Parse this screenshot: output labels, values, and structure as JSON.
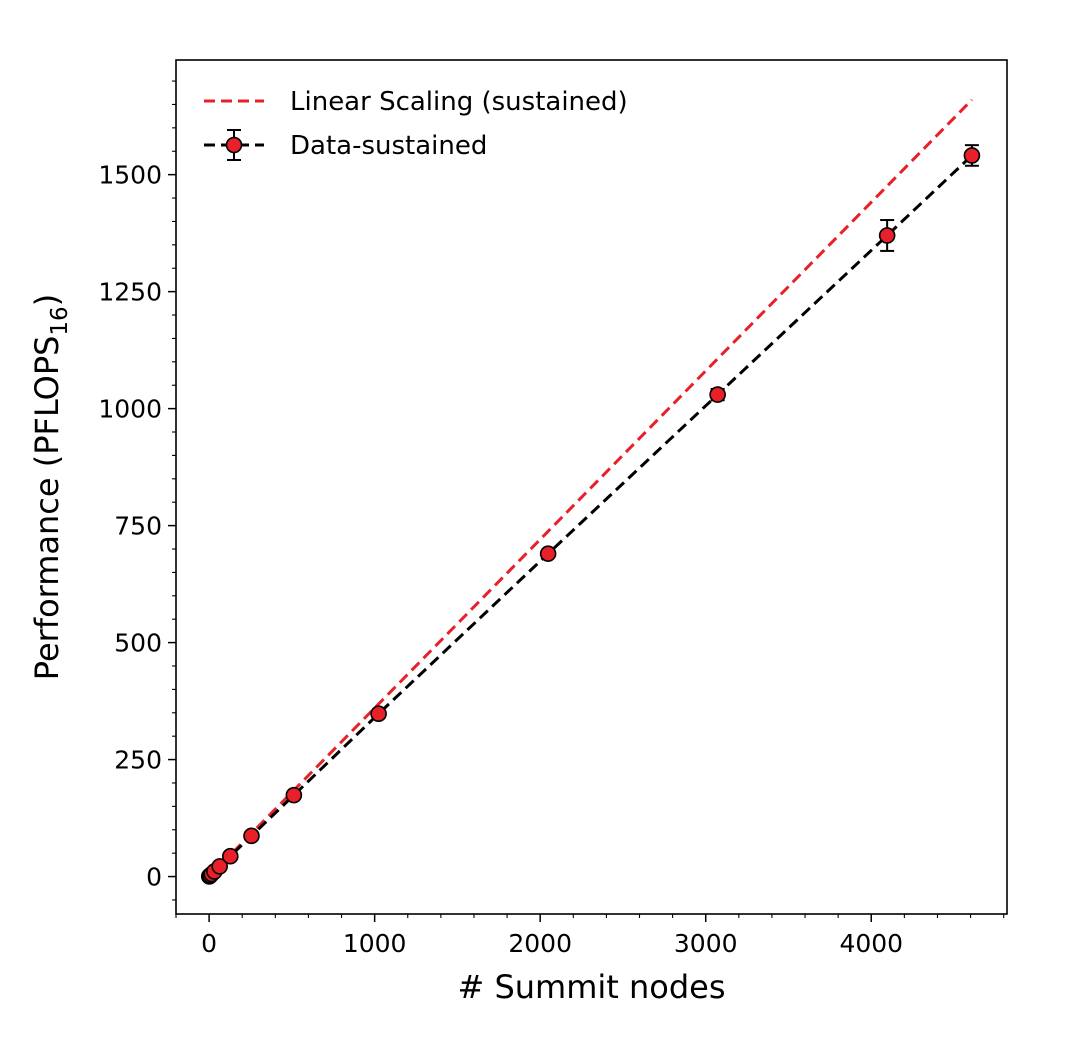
{
  "chart_data": {
    "type": "scatter",
    "xlabel": "# Summit nodes",
    "ylabel_main": "Performance (PFLOPS",
    "ylabel_sub": "16",
    "ylabel_close": ")",
    "xlim": [
      -200,
      4820
    ],
    "ylim": [
      -80,
      1745
    ],
    "xticks": [
      0,
      1000,
      2000,
      3000,
      4000
    ],
    "yticks": [
      0,
      250,
      500,
      750,
      1000,
      1250,
      1500
    ],
    "x_minor_step": 200,
    "y_minor_step": 50,
    "grid": false,
    "legend_position": "top-left",
    "series": [
      {
        "name": "Linear Scaling (sustained)",
        "kind": "line",
        "color": "#e8202a",
        "linestyle": "dashed",
        "x": [
          0,
          4608
        ],
        "y": [
          0,
          1660
        ]
      },
      {
        "name": "Data-sustained",
        "kind": "errorbar",
        "color": "#e8202a",
        "linecolor": "#000000",
        "linestyle": "dashed",
        "x": [
          1,
          2,
          4,
          8,
          16,
          32,
          64,
          128,
          256,
          512,
          1024,
          2048,
          3072,
          4096,
          4608
        ],
        "y": [
          0.34,
          0.68,
          1.4,
          2.7,
          5.4,
          10.9,
          21.8,
          43.5,
          87,
          174,
          348,
          690,
          1030,
          1370,
          1541
        ],
        "yerr": [
          0,
          0,
          0,
          0,
          0,
          0,
          0,
          0,
          2,
          3,
          5,
          7,
          12,
          33,
          22
        ]
      }
    ]
  }
}
